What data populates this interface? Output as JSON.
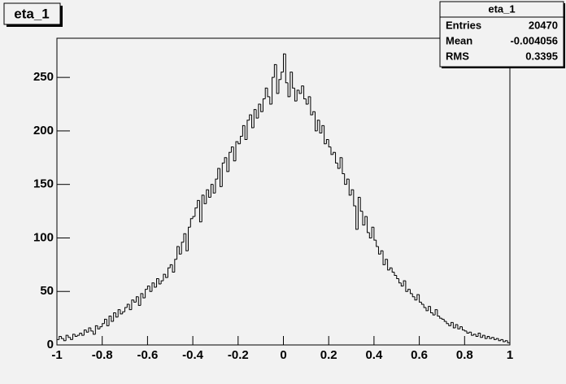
{
  "chart_data": {
    "type": "histogram",
    "title": "eta_1",
    "bins": [
      -1,
      -0.99,
      -0.98,
      -0.97,
      -0.96,
      -0.95,
      -0.94,
      -0.93,
      -0.92,
      -0.91,
      -0.9,
      -0.89,
      -0.88,
      -0.87,
      -0.86,
      -0.85,
      -0.84,
      -0.83,
      -0.82,
      -0.81,
      -0.8,
      -0.79,
      -0.78,
      -0.77,
      -0.76,
      -0.75,
      -0.74,
      -0.73,
      -0.72,
      -0.71,
      -0.7,
      -0.69,
      -0.68,
      -0.67,
      -0.66,
      -0.65,
      -0.64,
      -0.63,
      -0.62,
      -0.61,
      -0.6,
      -0.59,
      -0.58,
      -0.57,
      -0.56,
      -0.55,
      -0.54,
      -0.53,
      -0.52,
      -0.51,
      -0.5,
      -0.49,
      -0.48,
      -0.47,
      -0.46,
      -0.45,
      -0.44,
      -0.43,
      -0.42,
      -0.41,
      -0.4,
      -0.39,
      -0.38,
      -0.37,
      -0.36,
      -0.35,
      -0.34,
      -0.33,
      -0.32,
      -0.31,
      -0.3,
      -0.29,
      -0.28,
      -0.27,
      -0.26,
      -0.25,
      -0.24,
      -0.23,
      -0.22,
      -0.21,
      -0.2,
      -0.19,
      -0.18,
      -0.17,
      -0.16,
      -0.15,
      -0.14,
      -0.13,
      -0.12,
      -0.11,
      -0.1,
      -0.09,
      -0.08,
      -0.07,
      -0.06,
      -0.05,
      -0.04,
      -0.03,
      -0.02,
      -0.01,
      0,
      0.01,
      0.02,
      0.03,
      0.04,
      0.05,
      0.06,
      0.07,
      0.08,
      0.09,
      0.1,
      0.11,
      0.12,
      0.13,
      0.14,
      0.15,
      0.16,
      0.17,
      0.18,
      0.19,
      0.2,
      0.21,
      0.22,
      0.23,
      0.24,
      0.25,
      0.26,
      0.27,
      0.28,
      0.29,
      0.3,
      0.31,
      0.32,
      0.33,
      0.34,
      0.35,
      0.36,
      0.37,
      0.38,
      0.39,
      0.4,
      0.41,
      0.42,
      0.43,
      0.44,
      0.45,
      0.46,
      0.47,
      0.48,
      0.49,
      0.5,
      0.51,
      0.52,
      0.53,
      0.54,
      0.55,
      0.56,
      0.57,
      0.58,
      0.59,
      0.6,
      0.61,
      0.62,
      0.63,
      0.64,
      0.65,
      0.66,
      0.67,
      0.68,
      0.69,
      0.7,
      0.71,
      0.72,
      0.73,
      0.74,
      0.75,
      0.76,
      0.77,
      0.78,
      0.79,
      0.8,
      0.81,
      0.82,
      0.83,
      0.84,
      0.85,
      0.86,
      0.87,
      0.88,
      0.89,
      0.9,
      0.91,
      0.92,
      0.93,
      0.94,
      0.95,
      0.96,
      0.97,
      0.98,
      0.99,
      1
    ],
    "values": [
      5,
      8,
      6,
      4,
      9,
      7,
      5,
      10,
      8,
      9,
      11,
      9,
      14,
      12,
      16,
      13,
      10,
      18,
      15,
      17,
      20,
      24,
      18,
      27,
      22,
      30,
      26,
      33,
      29,
      31,
      35,
      38,
      33,
      42,
      40,
      45,
      37,
      48,
      44,
      52,
      55,
      50,
      58,
      54,
      62,
      57,
      60,
      66,
      63,
      72,
      75,
      68,
      80,
      92,
      85,
      96,
      104,
      88,
      110,
      118,
      120,
      128,
      135,
      115,
      140,
      132,
      145,
      138,
      150,
      142,
      155,
      165,
      148,
      170,
      175,
      162,
      180,
      185,
      172,
      190,
      188,
      195,
      205,
      192,
      210,
      215,
      203,
      220,
      212,
      225,
      218,
      230,
      240,
      232,
      225,
      250,
      262,
      235,
      248,
      255,
      272,
      245,
      232,
      255,
      240,
      228,
      238,
      235,
      242,
      230,
      225,
      232,
      215,
      218,
      200,
      210,
      198,
      205,
      188,
      192,
      185,
      178,
      180,
      170,
      165,
      175,
      160,
      150,
      155,
      140,
      145,
      130,
      108,
      138,
      125,
      112,
      120,
      105,
      100,
      110,
      98,
      92,
      85,
      88,
      75,
      80,
      70,
      72,
      68,
      65,
      62,
      58,
      55,
      60,
      50,
      52,
      48,
      45,
      42,
      47,
      40,
      38,
      35,
      32,
      36,
      30,
      28,
      33,
      27,
      25,
      24,
      22,
      20,
      18,
      21,
      16,
      19,
      15,
      17,
      14,
      13,
      11,
      12,
      9,
      10,
      8,
      11,
      7,
      9,
      6,
      8,
      6,
      7,
      5,
      6,
      4,
      5,
      3,
      4,
      2
    ],
    "color": "#000000",
    "xlim": [
      -1,
      1
    ],
    "xticks": [
      -1,
      -0.8,
      -0.6,
      -0.4,
      -0.2,
      0,
      0.2,
      0.4,
      0.6,
      0.8,
      1
    ],
    "ylim": [
      0,
      286.6
    ],
    "yticks": [
      0,
      50,
      100,
      150,
      200,
      250
    ],
    "stats": {
      "title": "eta_1",
      "rows": [
        [
          "Entries",
          20470
        ],
        [
          "Mean",
          -0.004056
        ],
        [
          "RMS",
          0.3395
        ]
      ]
    }
  }
}
